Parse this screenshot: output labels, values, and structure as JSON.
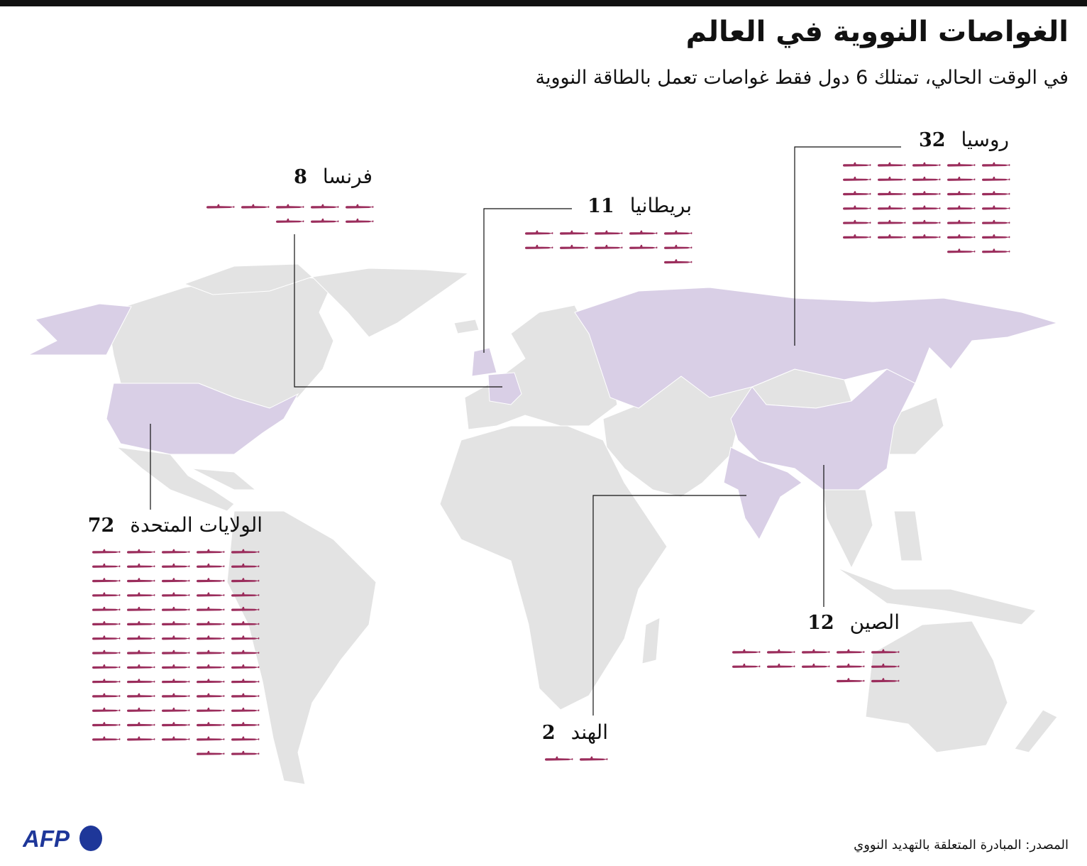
{
  "header": {
    "title": "الغواصات النووية في العالم",
    "subtitle": "في الوقت الحالي، تمتلك 6 دول فقط غواصات تعمل بالطاقة النووية"
  },
  "colors": {
    "highlight_country": "#d9cfe6",
    "land": "#e3e3e3",
    "submarine": "#9b2d5c",
    "leader_line": "#111111"
  },
  "icon": "submarine-icon",
  "countries": [
    {
      "key": "russia",
      "name": "روسيا",
      "count": 32
    },
    {
      "key": "france",
      "name": "فرنسا",
      "count": 8
    },
    {
      "key": "uk",
      "name": "بريطانيا",
      "count": 11
    },
    {
      "key": "usa",
      "name": "الولايات المتحدة",
      "count": 72
    },
    {
      "key": "china",
      "name": "الصين",
      "count": 12
    },
    {
      "key": "india",
      "name": "الهند",
      "count": 2
    }
  ],
  "footer": {
    "source": "المصدر: المبادرة المتعلقة بالتهديد النووي",
    "logo": "AFP"
  }
}
